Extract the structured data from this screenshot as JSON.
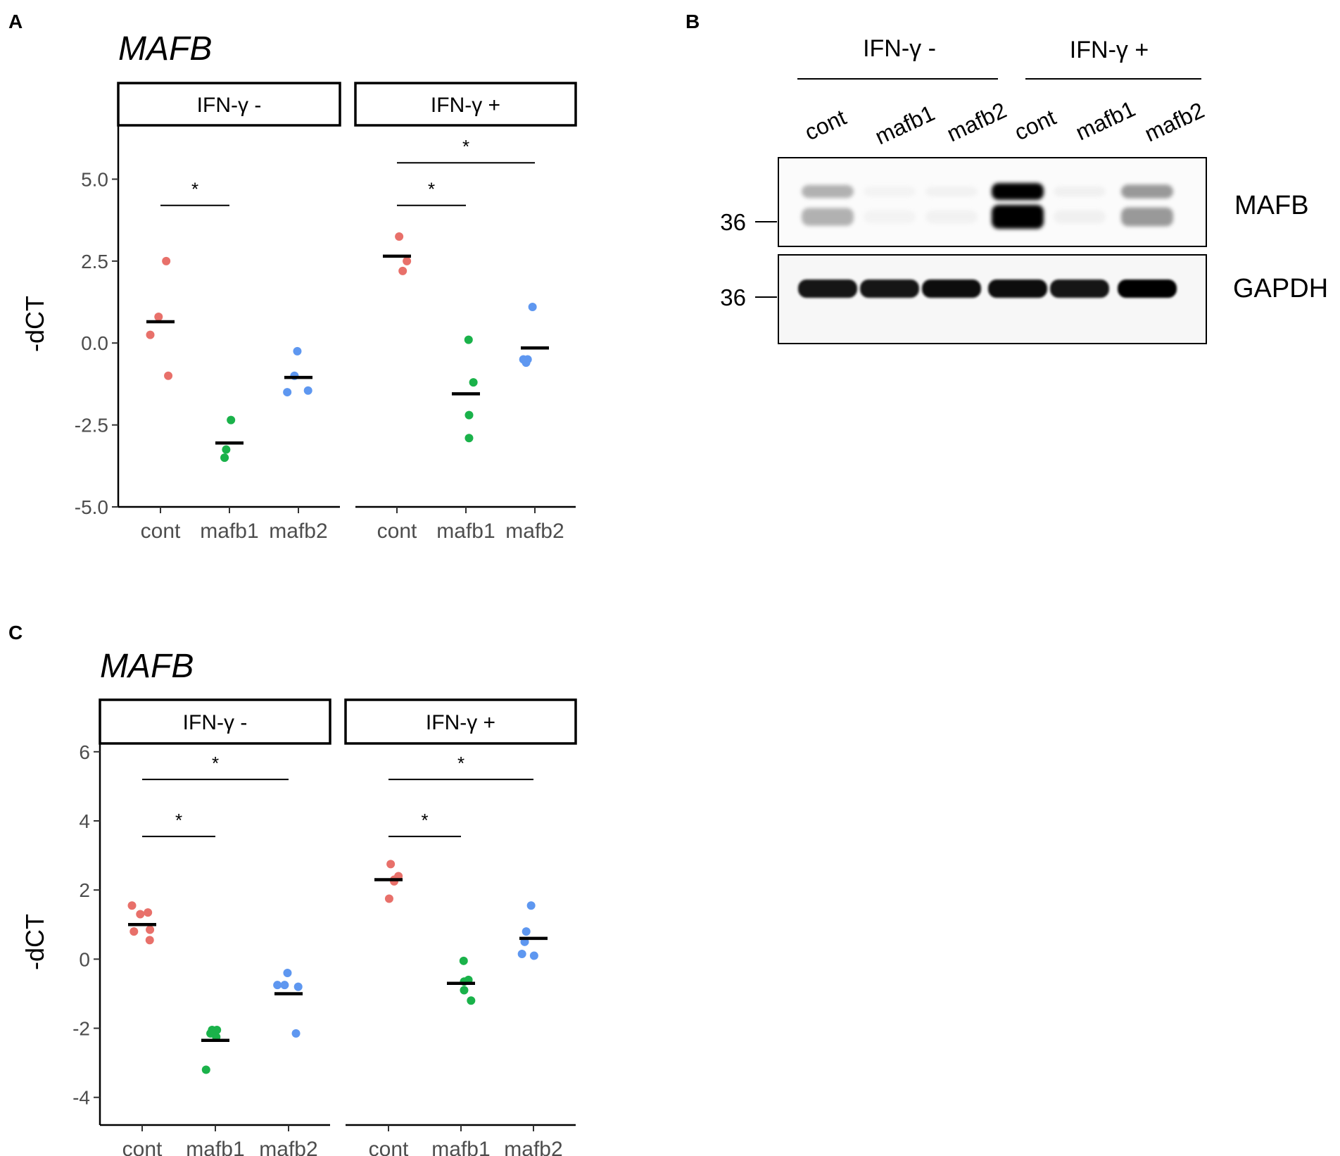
{
  "panel_labels": [
    "A",
    "B",
    "C"
  ],
  "colors": {
    "cont": "#e8706a",
    "mafb1": "#1ab24a",
    "mafb2": "#5e97f0",
    "mean_bar": "#000000"
  },
  "chart_data": [
    {
      "panel": "A",
      "type": "scatter",
      "title": "MAFB",
      "ylabel": "-dCT",
      "ylim": [
        -5.0,
        6.6
      ],
      "yticks": [
        "5.0",
        "2.5",
        "0.0",
        "-2.5",
        "-5.0"
      ],
      "ytick_values": [
        5.0,
        2.5,
        0.0,
        -2.5,
        -5.0
      ],
      "categories": [
        "cont",
        "mafb1",
        "mafb2"
      ],
      "facets": [
        {
          "strip": "IFN-γ -",
          "series": [
            {
              "category": "cont",
              "points": [
                2.5,
                0.25,
                0.8,
                -1.0
              ],
              "mean": 0.65
            },
            {
              "category": "mafb1",
              "points": [
                -2.35,
                -3.25,
                -3.5
              ],
              "mean": -3.05
            },
            {
              "category": "mafb2",
              "points": [
                -0.25,
                -1.0,
                -1.45,
                -1.5
              ],
              "mean": -1.05
            }
          ],
          "significance": [
            {
              "from": "cont",
              "to": "mafb1",
              "y": 4.2,
              "label": "*"
            }
          ]
        },
        {
          "strip": "IFN-γ +",
          "series": [
            {
              "category": "cont",
              "points": [
                3.25,
                2.5,
                2.2
              ],
              "mean": 2.65
            },
            {
              "category": "mafb1",
              "points": [
                0.1,
                -1.2,
                -2.2,
                -2.9
              ],
              "mean": -1.55
            },
            {
              "category": "mafb2",
              "points": [
                1.1,
                -0.5,
                -0.6,
                -0.5
              ],
              "mean": -0.15
            }
          ],
          "significance": [
            {
              "from": "cont",
              "to": "mafb2",
              "y": 5.5,
              "label": "*"
            },
            {
              "from": "cont",
              "to": "mafb1",
              "y": 4.2,
              "label": "*"
            }
          ]
        }
      ]
    },
    {
      "panel": "B",
      "type": "western-blot",
      "groups": [
        {
          "label": "IFN-γ -",
          "lanes": [
            "cont",
            "mafb1",
            "mafb2"
          ]
        },
        {
          "label": "IFN-γ +",
          "lanes": [
            "cont",
            "mafb1",
            "mafb2"
          ]
        }
      ],
      "blots": [
        {
          "label": "MAFB",
          "marker": "36",
          "band_intensity": [
            0.45,
            0.03,
            0.05,
            1.0,
            0.06,
            0.55
          ]
        },
        {
          "label": "GAPDH",
          "marker": "36",
          "band_intensity": [
            0.9,
            0.88,
            0.92,
            0.95,
            0.88,
            0.97
          ]
        }
      ]
    },
    {
      "panel": "C",
      "type": "scatter",
      "title": "MAFB",
      "ylabel": "-dCT",
      "ylim": [
        -4.8,
        6.2
      ],
      "yticks": [
        "6",
        "4",
        "2",
        "0",
        "-2",
        "-4"
      ],
      "ytick_values": [
        6,
        4,
        2,
        0,
        -2,
        -4
      ],
      "categories": [
        "cont",
        "mafb1",
        "mafb2"
      ],
      "facets": [
        {
          "strip": "IFN-γ -",
          "series": [
            {
              "category": "cont",
              "points": [
                1.35,
                1.55,
                1.3,
                0.85,
                0.8,
                0.55
              ],
              "mean": 1.0
            },
            {
              "category": "mafb1",
              "points": [
                -2.05,
                -2.05,
                -2.15,
                -2.25,
                -3.2
              ],
              "mean": -2.35
            },
            {
              "category": "mafb2",
              "points": [
                -0.4,
                -0.75,
                -0.8,
                -0.75,
                -2.15
              ],
              "mean": -1.0
            }
          ],
          "significance": [
            {
              "from": "cont",
              "to": "mafb2",
              "y": 5.2,
              "label": "*"
            },
            {
              "from": "cont",
              "to": "mafb1",
              "y": 3.55,
              "label": "*"
            }
          ]
        },
        {
          "strip": "IFN-γ +",
          "series": [
            {
              "category": "cont",
              "points": [
                2.75,
                2.4,
                2.3,
                2.25,
                1.75
              ],
              "mean": 2.3
            },
            {
              "category": "mafb1",
              "points": [
                -0.05,
                -0.6,
                -0.65,
                -0.9,
                -1.2
              ],
              "mean": -0.7
            },
            {
              "category": "mafb2",
              "points": [
                1.55,
                0.8,
                0.5,
                0.15,
                0.1
              ],
              "mean": 0.6
            }
          ],
          "significance": [
            {
              "from": "cont",
              "to": "mafb2",
              "y": 5.2,
              "label": "*"
            },
            {
              "from": "cont",
              "to": "mafb1",
              "y": 3.55,
              "label": "*"
            }
          ]
        }
      ]
    }
  ]
}
